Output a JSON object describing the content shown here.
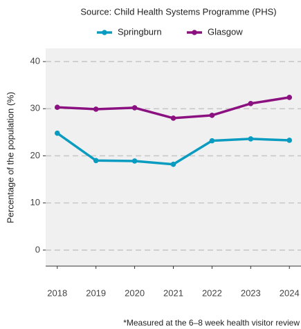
{
  "chart_data": {
    "type": "line",
    "subtitle": "Source: Child Health Systems Programme (PHS)",
    "y_label": "Percentage of the population (%)",
    "footnote": "*Measured at the 6–8 week health visitor review",
    "x": [
      2018,
      2019,
      2020,
      2021,
      2022,
      2023,
      2024
    ],
    "series": [
      {
        "name": "Springburn",
        "color": "#0a9cc0",
        "values": [
          24.8,
          19.0,
          18.9,
          18.2,
          23.2,
          23.6,
          23.3
        ]
      },
      {
        "name": "Glasgow",
        "color": "#8b1180",
        "values": [
          30.3,
          29.9,
          30.2,
          28.0,
          28.6,
          31.1,
          32.4
        ]
      }
    ],
    "xlim": [
      2017.7,
      2024.3
    ],
    "xticks": [
      2018,
      2019,
      2020,
      2021,
      2022,
      2023,
      2024
    ],
    "ylim": [
      -3.4,
      42.8
    ],
    "yticks": [
      0,
      10,
      20,
      30,
      40
    ],
    "grid": true,
    "legend": "top"
  }
}
